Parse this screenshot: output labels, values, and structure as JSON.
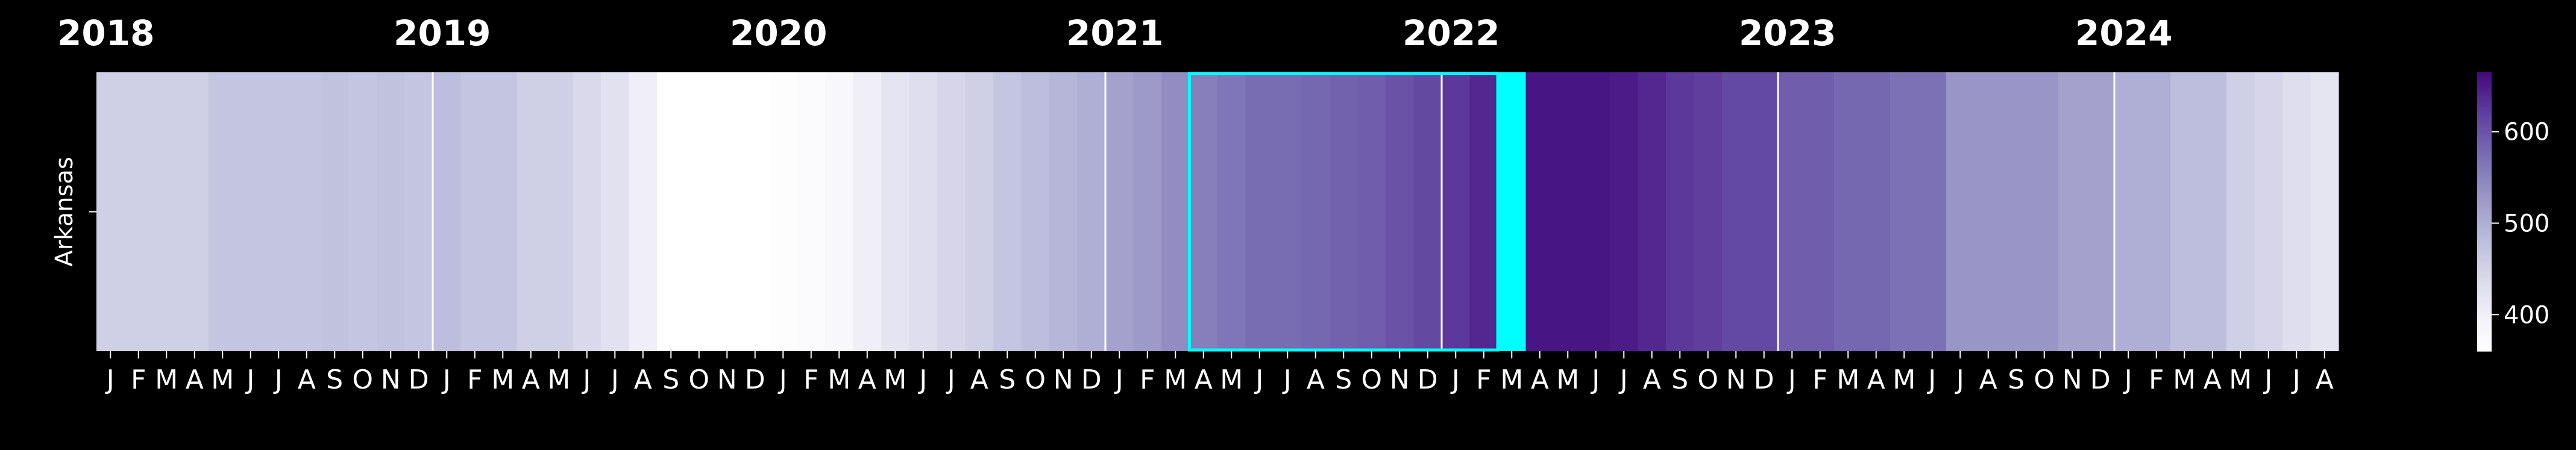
{
  "chart_data": {
    "type": "heatmap",
    "row_label": "Arkansas",
    "years": [
      "2018",
      "2019",
      "2020",
      "2021",
      "2022",
      "2023",
      "2024"
    ],
    "months": [
      "J",
      "F",
      "M",
      "A",
      "M",
      "J",
      "J",
      "A",
      "S",
      "O",
      "N",
      "D",
      "J",
      "F",
      "M",
      "A",
      "M",
      "J",
      "J",
      "A",
      "S",
      "O",
      "N",
      "D",
      "J",
      "F",
      "M",
      "A",
      "M",
      "J",
      "J",
      "A",
      "S",
      "O",
      "N",
      "D",
      "J",
      "F",
      "M",
      "A",
      "M",
      "J",
      "J",
      "A",
      "S",
      "O",
      "N",
      "D",
      "J",
      "F",
      "M",
      "A",
      "M",
      "J",
      "J",
      "A",
      "S",
      "O",
      "N",
      "D",
      "J",
      "F",
      "M",
      "A",
      "M",
      "J",
      "J",
      "A",
      "S",
      "O",
      "N",
      "D",
      "J",
      "F",
      "M",
      "A",
      "M",
      "J",
      "J",
      "A"
    ],
    "values": [
      455,
      455,
      455,
      455,
      470,
      470,
      470,
      470,
      475,
      470,
      475,
      470,
      480,
      470,
      470,
      455,
      455,
      440,
      425,
      400,
      360,
      360,
      360,
      360,
      365,
      370,
      380,
      400,
      420,
      430,
      445,
      455,
      470,
      480,
      490,
      500,
      515,
      525,
      540,
      555,
      565,
      575,
      575,
      580,
      585,
      590,
      600,
      610,
      625,
      640,
      655,
      655,
      655,
      655,
      650,
      640,
      625,
      620,
      610,
      610,
      590,
      590,
      580,
      580,
      570,
      570,
      530,
      530,
      530,
      530,
      515,
      515,
      500,
      500,
      480,
      480,
      455,
      445,
      430,
      420
    ],
    "highlight": {
      "start_index": 39,
      "end_index": 50,
      "color": "#00ffff"
    },
    "filled_cell": {
      "index": 50,
      "color": "#00ffff"
    },
    "colorbar": {
      "min": 360,
      "max": 665,
      "ticks": [
        "400",
        "500",
        "600"
      ],
      "tick_values": [
        400,
        500,
        600
      ],
      "colormap": "Purples"
    }
  }
}
